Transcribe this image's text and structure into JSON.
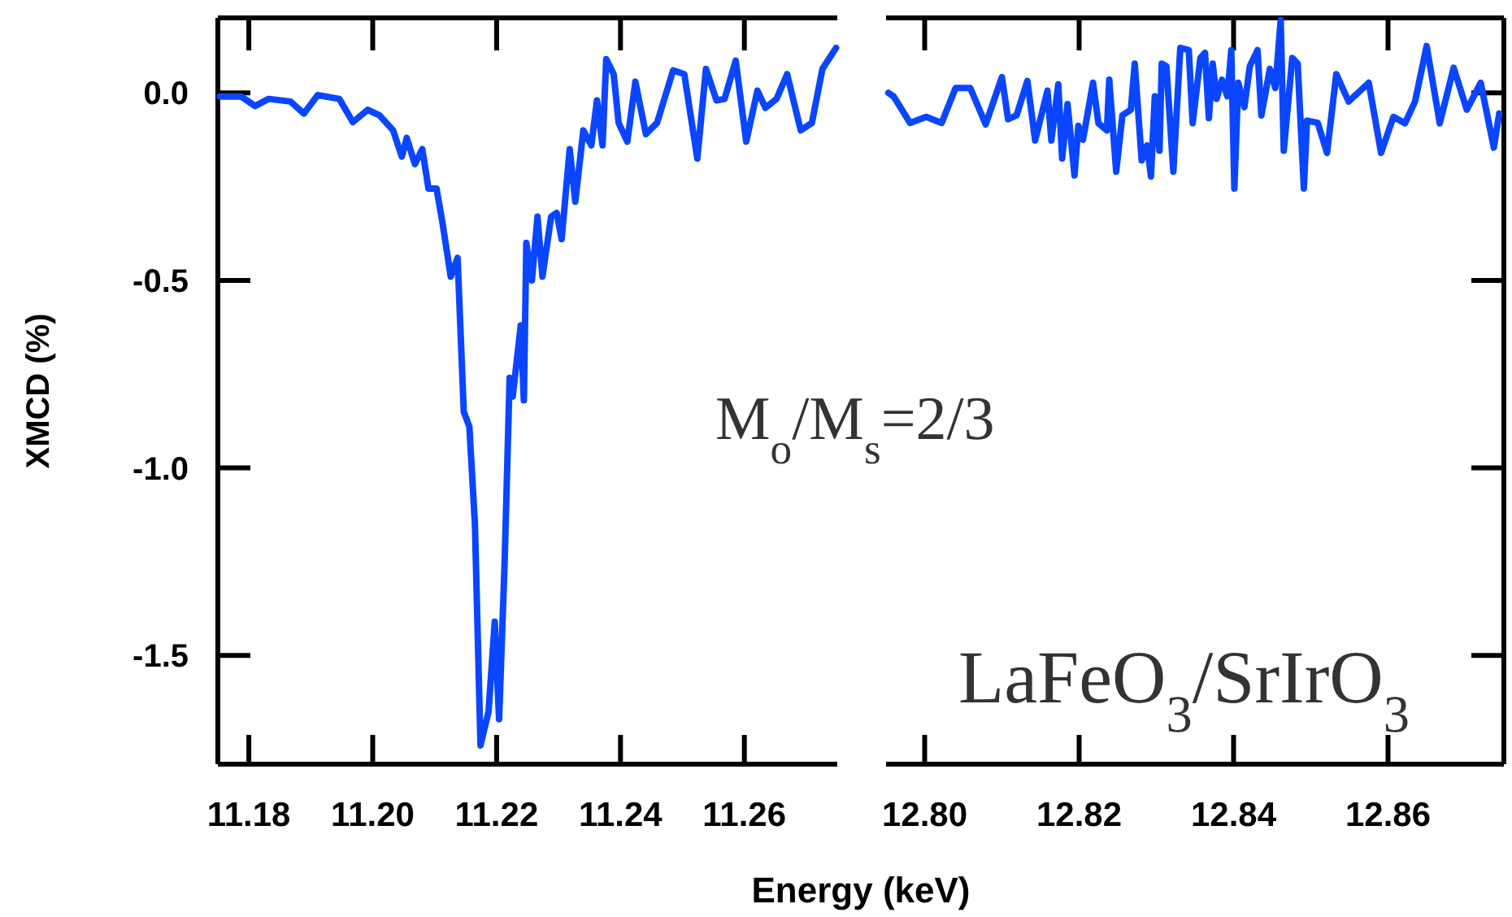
{
  "chart_data": [
    {
      "type": "line",
      "xlabel": "Energy (keV)",
      "ylabel": "XMCD (%)",
      "xlim": [
        11.175,
        11.275
      ],
      "xticks": [
        11.18,
        {
          "value": 11.2,
          "label": "11.20"
        },
        11.22,
        11.24,
        11.26
      ],
      "ylim": [
        -1.79,
        0.2
      ],
      "yticks": [
        {
          "value": 0,
          "label": "0.0"
        },
        -0.5,
        {
          "value": -1,
          "label": "-1.0"
        },
        -1.5
      ],
      "annotations": [
        "M$_{o}$/M$_{s}$=2/3",
        "LaFeO$_{3}$/SrIrO$_{3}$"
      ],
      "series": [
        {
          "color": "#0a46ff",
          "x": [
            11.1753,
            11.1788,
            11.181,
            11.1832,
            11.1867,
            11.1889,
            11.1911,
            11.1946,
            11.1968,
            11.1992,
            11.2011,
            11.2033,
            11.2047,
            11.2055,
            11.2068,
            11.208,
            11.209,
            11.2103,
            11.2112,
            11.2126,
            11.2137,
            11.2147,
            11.2156,
            11.2165,
            11.2174,
            11.2187,
            11.2197,
            11.2204,
            11.2213,
            11.2221,
            11.2226,
            11.2239,
            11.2244,
            11.2248,
            11.2257,
            11.2266,
            11.2274,
            11.2288,
            11.2297,
            11.2305,
            11.2318,
            11.2327,
            11.234,
            11.2353,
            11.2362,
            11.2371,
            11.2377,
            11.2389,
            11.2397,
            11.2411,
            11.2424,
            11.2441,
            11.2459,
            11.2485,
            11.2503,
            11.2524,
            11.2538,
            11.2555,
            11.2568,
            11.2586,
            11.2603,
            11.2621,
            11.2634,
            11.2652,
            11.2669,
            11.2691,
            11.2709,
            11.2726,
            11.2748
          ],
          "values": [
            -0.01,
            -0.01,
            -0.035,
            -0.016,
            -0.023,
            -0.055,
            -0.006,
            -0.016,
            -0.078,
            -0.045,
            -0.06,
            -0.1,
            -0.17,
            -0.12,
            -0.19,
            -0.15,
            -0.255,
            -0.255,
            -0.34,
            -0.49,
            -0.44,
            -0.85,
            -0.89,
            -1.15,
            -1.74,
            -1.65,
            -1.41,
            -1.67,
            -1.25,
            -0.76,
            -0.81,
            -0.62,
            -0.82,
            -0.4,
            -0.5,
            -0.33,
            -0.49,
            -0.33,
            -0.32,
            -0.39,
            -0.15,
            -0.29,
            -0.1,
            -0.14,
            -0.02,
            -0.14,
            0.09,
            0.05,
            -0.08,
            -0.13,
            0.03,
            -0.11,
            -0.08,
            0.06,
            0.05,
            -0.175,
            0.064,
            -0.02,
            -0.016,
            0.086,
            -0.13,
            0.006,
            -0.04,
            -0.016,
            0.05,
            -0.1,
            -0.08,
            0.064,
            0.12
          ]
        }
      ]
    },
    {
      "type": "line",
      "tick_labels": "x",
      "xlim": [
        12.795,
        12.875
      ],
      "xticks": [
        {
          "value": 12.8,
          "label": "12.80"
        },
        12.82,
        12.84,
        12.86
      ],
      "ylim": [
        -1.79,
        0.2
      ],
      "yticks": [
        0,
        -0.5,
        -1,
        -1.5
      ],
      "series": [
        {
          "color": "#0a46ff",
          "x": [
            12.7953,
            12.796,
            12.7981,
            12.8002,
            12.8022,
            12.804,
            12.8059,
            12.8079,
            12.81,
            12.8108,
            12.8119,
            12.8133,
            12.8143,
            12.8159,
            12.8164,
            12.8173,
            12.8178,
            12.8185,
            12.8194,
            12.8199,
            12.8205,
            12.8218,
            12.8225,
            12.8236,
            12.8239,
            12.8248,
            12.8256,
            12.8267,
            12.8272,
            12.8281,
            12.8288,
            12.8293,
            12.8298,
            12.8304,
            12.8307,
            12.8313,
            12.8322,
            12.8331,
            12.8342,
            12.8347,
            12.8357,
            12.8363,
            12.8368,
            12.8373,
            12.8378,
            12.8385,
            12.8392,
            12.8397,
            12.8401,
            12.8406,
            12.8414,
            12.8421,
            12.8431,
            12.8436,
            12.8447,
            12.8454,
            12.8461,
            12.8465,
            12.8476,
            12.8483,
            12.8491,
            12.8495,
            12.8509,
            12.8521,
            12.8533,
            12.8549,
            12.8575,
            12.8591,
            12.8607,
            12.8622,
            12.8635,
            12.865,
            12.8667,
            12.8685,
            12.8702,
            12.872,
            12.8737,
            12.8744
          ],
          "values": [
            0.0,
            -0.01,
            -0.08,
            -0.064,
            -0.08,
            0.013,
            0.013,
            -0.084,
            0.042,
            -0.07,
            -0.06,
            0.032,
            -0.127,
            0.006,
            -0.127,
            0.023,
            -0.175,
            -0.03,
            -0.22,
            -0.088,
            -0.125,
            0.027,
            -0.081,
            -0.1,
            0.035,
            -0.21,
            -0.06,
            -0.045,
            0.078,
            -0.18,
            -0.14,
            -0.223,
            -0.009,
            -0.154,
            0.078,
            0.071,
            -0.21,
            0.12,
            0.114,
            -0.081,
            0.093,
            0.107,
            -0.067,
            0.078,
            -0.016,
            0.035,
            -0.009,
            0.114,
            -0.255,
            0.027,
            -0.038,
            0.071,
            0.114,
            -0.06,
            0.064,
            0.013,
            0.194,
            -0.154,
            0.093,
            0.078,
            -0.255,
            -0.074,
            -0.08,
            -0.16,
            0.05,
            -0.023,
            0.027,
            -0.16,
            -0.064,
            -0.081,
            -0.023,
            0.125,
            -0.081,
            0.067,
            -0.045,
            0.027,
            -0.146,
            -0.055
          ]
        }
      ]
    }
  ]
}
